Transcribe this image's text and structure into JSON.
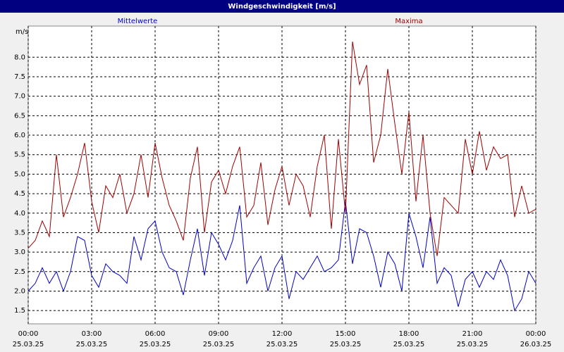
{
  "chart_data": {
    "type": "line",
    "title": "Windgeschwindigkeit [m/s]",
    "y_unit": "m/s",
    "x": [
      0,
      20,
      40,
      60,
      80,
      100,
      120,
      140,
      160,
      180,
      200,
      220,
      240,
      260,
      280,
      300,
      320,
      340,
      360,
      380,
      400,
      420,
      440,
      460,
      480,
      500,
      520,
      540,
      560,
      580,
      600,
      620,
      640,
      660,
      680,
      700,
      720,
      740,
      760,
      780,
      800,
      820,
      840,
      860,
      880,
      900,
      920,
      940,
      960,
      980,
      1000,
      1020,
      1040,
      1060,
      1080,
      1100,
      1120,
      1140,
      1160,
      1180,
      1200,
      1220,
      1240,
      1260,
      1280,
      1300,
      1320,
      1340,
      1360,
      1380,
      1400,
      1420,
      1440
    ],
    "series": [
      {
        "name": "Mittelwerte",
        "color": "#0000cc",
        "values": [
          2.0,
          2.2,
          2.6,
          2.2,
          2.5,
          2.0,
          2.5,
          3.4,
          3.3,
          2.4,
          2.1,
          2.7,
          2.5,
          2.4,
          2.2,
          3.4,
          2.8,
          3.6,
          3.8,
          3.0,
          2.6,
          2.5,
          1.9,
          2.8,
          3.6,
          2.4,
          3.5,
          3.2,
          2.8,
          3.3,
          4.2,
          2.2,
          2.6,
          2.9,
          2.0,
          2.6,
          2.9,
          1.8,
          2.5,
          2.3,
          2.6,
          2.9,
          2.5,
          2.6,
          2.8,
          4.3,
          2.7,
          3.6,
          3.5,
          2.9,
          2.1,
          3.0,
          2.7,
          2.0,
          4.0,
          3.4,
          2.6,
          3.9,
          2.2,
          2.6,
          2.4,
          1.6,
          2.3,
          2.5,
          2.1,
          2.5,
          2.3,
          2.8,
          2.4,
          1.5,
          1.8,
          2.5,
          2.2
        ]
      },
      {
        "name": "Maxima",
        "color": "#a00000",
        "values": [
          3.1,
          3.3,
          3.8,
          3.4,
          5.5,
          3.9,
          4.4,
          5.0,
          5.8,
          4.3,
          3.5,
          4.7,
          4.4,
          5.0,
          4.0,
          4.5,
          5.5,
          4.4,
          5.8,
          4.9,
          4.2,
          3.8,
          3.3,
          4.9,
          5.7,
          3.5,
          4.8,
          5.1,
          4.5,
          5.2,
          5.7,
          3.9,
          4.2,
          5.3,
          3.7,
          4.6,
          5.2,
          4.2,
          5.0,
          4.7,
          3.9,
          5.2,
          6.0,
          3.6,
          5.9,
          4.0,
          8.4,
          7.3,
          7.8,
          5.3,
          6.0,
          7.7,
          6.3,
          5.0,
          6.6,
          4.3,
          6.0,
          4.0,
          2.9,
          4.4,
          4.2,
          4.0,
          5.9,
          5.0,
          6.1,
          5.1,
          5.7,
          5.4,
          5.5,
          3.9,
          4.7,
          4.0,
          4.1
        ]
      }
    ],
    "xlim": [
      0,
      1440
    ],
    "xticks": [
      {
        "value": 0,
        "label": "00:00"
      },
      {
        "value": 180,
        "label": "03:00"
      },
      {
        "value": 360,
        "label": "06:00"
      },
      {
        "value": 540,
        "label": "09:00"
      },
      {
        "value": 720,
        "label": "12:00"
      },
      {
        "value": 900,
        "label": "15:00"
      },
      {
        "value": 1080,
        "label": "18:00"
      },
      {
        "value": 1260,
        "label": "21:00"
      },
      {
        "value": 1440,
        "label": "00:00"
      }
    ],
    "xtick_dates": [
      "25.03.25",
      "25.03.25",
      "25.03.25",
      "25.03.25",
      "25.03.25",
      "25.03.25",
      "25.03.25",
      "25.03.25",
      "26.03.25"
    ],
    "ylim": [
      1.16,
      8.8
    ],
    "yticks": [
      1.5,
      {
        "value": 2,
        "label": "2.0"
      },
      2.5,
      {
        "value": 3,
        "label": "3.0"
      },
      3.5,
      {
        "value": 4,
        "label": "4.0"
      },
      4.5,
      {
        "value": 5,
        "label": "5.0"
      },
      5.5,
      {
        "value": 6,
        "label": "6.0"
      },
      6.5,
      {
        "value": 7,
        "label": "7.0"
      },
      7.5,
      {
        "value": 8,
        "label": "8.0"
      }
    ],
    "grid": true
  }
}
